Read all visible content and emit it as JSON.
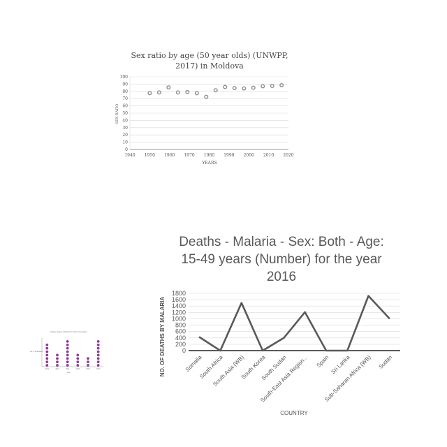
{
  "chart_data": [
    {
      "type": "scatter",
      "title": "Sex ratio by age (50 year olds) (UNWPP, 2017) in Moldova",
      "title_lines": [
        "Sex ratio by age (50 year olds) (UNWPP,",
        "2017) in Moldova"
      ],
      "xlabel": "YEARS",
      "ylabel": "SEX RATIO",
      "xlim": [
        1940,
        2020
      ],
      "ylim": [
        0,
        100
      ],
      "xticks": [
        1940,
        1950,
        1960,
        1970,
        1980,
        1990,
        2000,
        2010,
        2020
      ],
      "yticks": [
        0,
        10,
        20,
        30,
        40,
        50,
        60,
        70,
        80,
        90,
        100
      ],
      "grid": true,
      "x": [
        1950,
        1955,
        1960,
        1965,
        1970,
        1975,
        1980,
        1985,
        1990,
        1995,
        2000,
        2005,
        2010,
        2015,
        2020
      ],
      "y": [
        77.5,
        78.5,
        85.5,
        78.5,
        79,
        77.5,
        72.5,
        81.5,
        86,
        84.5,
        84,
        85,
        87,
        87.5,
        88.5
      ]
    },
    {
      "type": "line",
      "title": "Deaths - Malaria - Sex: Both - Age: 15-49 years (Number) for the year 2016",
      "title_lines": [
        "Deaths - Malaria - Sex: Both - Age:",
        "15-49 years (Number) for the year",
        "2016"
      ],
      "xlabel": "COUNTRY",
      "ylabel": "NO. OF DEATHS BY MALARIA",
      "ylim": [
        0,
        1800
      ],
      "yticks": [
        0,
        200,
        400,
        600,
        800,
        1000,
        1200,
        1400,
        1600,
        1800
      ],
      "grid": true,
      "categories": [
        "Somalia",
        "South Africa",
        "South Asia (WB)",
        "South Korea",
        "South Sudan",
        "South-East Asia Region...",
        "Spain",
        "Sri Lanka",
        "Sub-Saharan Africa (WB)",
        "Sudan"
      ],
      "values": [
        430,
        0,
        1500,
        0,
        400,
        1210,
        0,
        0,
        1720,
        1000
      ],
      "color": "#595959"
    },
    {
      "type": "scatter",
      "title": "College Degree Obtained in Other Universities",
      "xlabel": "Year",
      "ylabel": "No. of Graduates",
      "categories": [
        "2012",
        "2013",
        "2014",
        "2015",
        "2016",
        "2017"
      ],
      "values": [
        7,
        4,
        8,
        4,
        3,
        8
      ],
      "color": "#8e3b95"
    }
  ]
}
